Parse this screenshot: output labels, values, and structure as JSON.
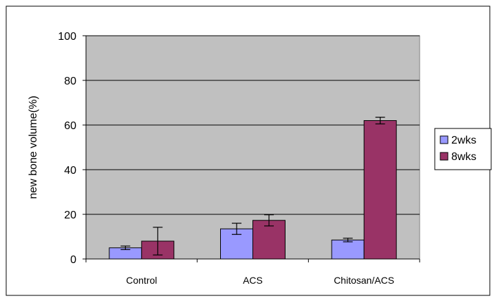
{
  "chart_data": {
    "type": "bar",
    "categories": [
      "Control",
      "ACS",
      "Chitosan/ACS"
    ],
    "series": [
      {
        "name": "2wks",
        "values": [
          5,
          13.5,
          8.5
        ],
        "errors": [
          0.8,
          2.5,
          0.8
        ],
        "color": "#9999ff"
      },
      {
        "name": "8wks",
        "values": [
          8,
          17.3,
          62
        ],
        "errors": [
          6.2,
          2.5,
          1.5
        ],
        "color": "#993366"
      }
    ],
    "xlabel": "",
    "ylabel": "new bone volume(%)",
    "ylim": [
      0,
      100
    ],
    "yticks": [
      0,
      20,
      40,
      60,
      80,
      100
    ],
    "grid": true,
    "legend_position": "right",
    "plot_background": "#c0c0c0"
  }
}
